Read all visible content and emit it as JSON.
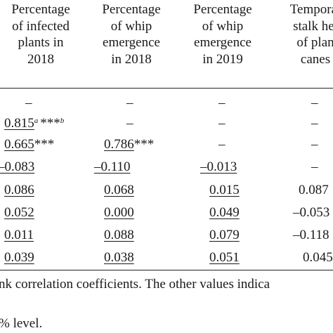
{
  "headers": [
    {
      "lines": [
        "Percentage",
        "of infected",
        "plants in",
        "2018"
      ]
    },
    {
      "lines": [
        "Percentage",
        "of whip",
        "emergence",
        "in 2018"
      ]
    },
    {
      "lines": [
        "Percentage",
        "of whip",
        "emergence",
        "in 2019"
      ]
    },
    {
      "lines": [
        "Temporal",
        "stalk hei",
        "of plan",
        "canes"
      ]
    }
  ],
  "rows": [
    [
      "–",
      "–",
      "–",
      "–"
    ],
    [
      {
        "v": "0.815",
        "sup1": "a",
        "stars": "***",
        "sup2": "b"
      },
      "–",
      "–",
      "–"
    ],
    [
      {
        "v": "0.665",
        "stars": "***"
      },
      {
        "v": "0.786",
        "stars": "***"
      },
      "–",
      "–"
    ],
    [
      {
        "v": "–0.083"
      },
      {
        "v": "–0.110"
      },
      {
        "v": "–0.013"
      },
      "–"
    ],
    [
      {
        "v": "0.086"
      },
      {
        "v": "0.068"
      },
      {
        "v": "0.015"
      },
      "0.087"
    ],
    [
      {
        "v": "0.052"
      },
      {
        "v": "0.000"
      },
      {
        "v": "0.049"
      },
      "–0.053"
    ],
    [
      {
        "v": "0.011"
      },
      {
        "v": "0.088"
      },
      {
        "v": "0.079"
      },
      "–0.118"
    ],
    [
      {
        "v": "0.039"
      },
      {
        "v": "0.038"
      },
      {
        "v": "0.051"
      },
      "0.045"
    ]
  ],
  "notes": [
    "nk correlation coefficients. The other values indica",
    "% level."
  ]
}
